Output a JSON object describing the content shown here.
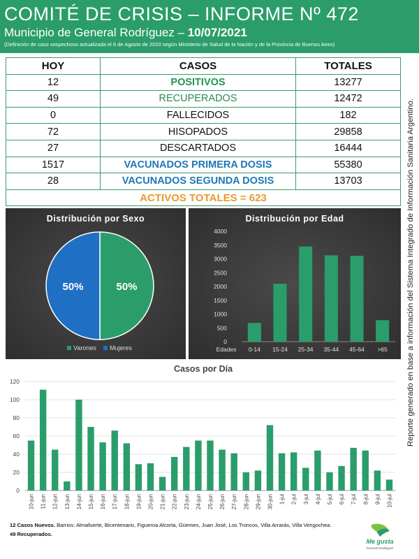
{
  "header": {
    "title": "COMITÉ DE CRISIS – INFORME Nº 472",
    "subtitle_prefix": "Municipio de General Rodríguez – ",
    "date": "10/07/2021",
    "note": "(Definición de caso sospechoso actualizada el 6 de Agosto de 2020 según Ministerio de Salud de la Nación y de la Provincia de Buenos Aires)"
  },
  "stats": {
    "headers": [
      "HOY",
      "CASOS",
      "TOTALES"
    ],
    "rows": [
      {
        "hoy": "12",
        "label": "POSITIVOS",
        "total": "13277"
      },
      {
        "hoy": "49",
        "label": "RECUPERADOS",
        "total": "12472"
      },
      {
        "hoy": "0",
        "label": "FALLECIDOS",
        "total": "182"
      },
      {
        "hoy": "72",
        "label": "HISOPADOS",
        "total": "29858"
      },
      {
        "hoy": "27",
        "label": "DESCARTADOS",
        "total": "16444"
      },
      {
        "hoy": "1517",
        "label": "VACUNADOS PRIMERA DOSIS",
        "total": "55380"
      },
      {
        "hoy": "28",
        "label": "VACUNADOS SEGUNDA DOSIS",
        "total": "13703"
      }
    ],
    "activos": "ACTIVOS TOTALES = 623"
  },
  "colors": {
    "header_bg": "#2a9d6b",
    "bar": "#2a9d6b",
    "pie_varones": "#2a9d6b",
    "pie_mujeres": "#1f6fc4",
    "accent_blue": "#1f78b4",
    "accent_orange": "#e89a2e"
  },
  "chart_data": [
    {
      "type": "pie",
      "title": "Distribución por Sexo",
      "labels": [
        "Varones",
        "Mujeres"
      ],
      "values": [
        50,
        50
      ],
      "data_labels": [
        "50%",
        "50%"
      ],
      "legend": "bottom"
    },
    {
      "type": "bar",
      "title": "Distribución por Edad",
      "xlabel": "Edades",
      "categories": [
        "0-14",
        "15-24",
        "25-34",
        "35-44",
        "45-64",
        ">65"
      ],
      "values": [
        680,
        2100,
        3450,
        3130,
        3110,
        780
      ],
      "ylim": [
        0,
        4000
      ],
      "yticks": [
        "0",
        "500",
        "1000",
        "1500",
        "2000",
        "2500",
        "3000",
        "3500",
        "4000"
      ],
      "grid": false
    },
    {
      "type": "bar",
      "title": "Casos por Día",
      "categories": [
        "10-jun",
        "11-jun",
        "12-jun",
        "13-jun",
        "14-jun",
        "15-jun",
        "16-jun",
        "17-jun",
        "18-jun",
        "19-jun",
        "20-jun",
        "21-jun",
        "22-jun",
        "23-jun",
        "24-jun",
        "25-jun",
        "26-jun",
        "27-jun",
        "28-jun",
        "29-jun",
        "30-jun",
        "1-jul",
        "2-jul",
        "3-jul",
        "4-jul",
        "5-jul",
        "6-jul",
        "7-jul",
        "8-jul",
        "9-jul",
        "10-jul"
      ],
      "values": [
        55,
        111,
        45,
        10,
        100,
        70,
        53,
        66,
        52,
        29,
        30,
        15,
        37,
        48,
        55,
        55,
        45,
        41,
        20,
        22,
        72,
        41,
        42,
        25,
        44,
        20,
        27,
        47,
        44,
        22,
        12
      ],
      "ylim": [
        0,
        120
      ],
      "yticks": [
        "0",
        "20",
        "40",
        "60",
        "80",
        "100",
        "120"
      ],
      "grid": true
    }
  ],
  "side_text": "Reporte generado en base a información del Sistema Integrado de Información Sanitaria Argentino.",
  "footer": {
    "line1_bold": "12 Casos Nuevos.",
    "line1_rest": " Barrios: Almafuerte, Bicentenario, Figueroa Alcorta, Güemes, Juan José, Los Troncos, Villa Arrarás, Villa Vengochea.",
    "line2_bold": "49 Recuperados."
  },
  "logo": {
    "text1": "Me gusta",
    "text2": "General Rodríguez"
  }
}
